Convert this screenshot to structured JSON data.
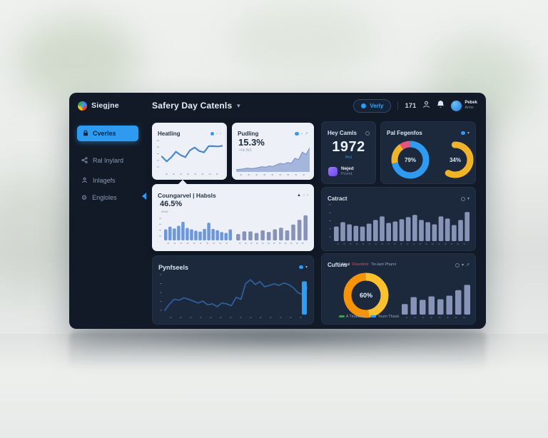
{
  "colors": {
    "accent": "#2e9bf0",
    "panel_bg": "#121a28",
    "card_dark": "#1c293d",
    "card_light": "#edf0f6",
    "bar_gray": "#8794b8",
    "bar_blue": "#6f97d8",
    "donut_blue": "#2e9bf0",
    "donut_yellow": "#f0b429",
    "donut_pink": "#e8537a",
    "donut_orange": "#f59409",
    "legend_green": "#3f9e52"
  },
  "header": {
    "logo_text": "Siegjne",
    "title": "Safery Day Catenls",
    "search_label": "Verly",
    "counter": "171",
    "user_name": "Pebek",
    "user_role": "Amw"
  },
  "sidebar": {
    "items": [
      {
        "label": "Cverles",
        "active": true
      },
      {
        "label": "Ral Inylard",
        "active": false
      },
      {
        "label": "Inlagefs",
        "active": false
      },
      {
        "label": "Engloles",
        "active": false
      }
    ]
  },
  "cards": {
    "heatling": {
      "title": "Heatling"
    },
    "pudling": {
      "title": "Pudling",
      "value": "15.3%",
      "subvalue": "+0k 0k2"
    },
    "hey_camls": {
      "title": "Hey Camls",
      "value": "1972",
      "caption": "Prcl",
      "item_title": "Nejed",
      "item_sub": "Pcvnd"
    },
    "pal_fegenfos": {
      "title": "Pal Fegenfos"
    },
    "coungarvel": {
      "title": "Coungarvel | Habsls",
      "value": "46.5%",
      "subvalue": "www"
    },
    "catract": {
      "title": "Catract"
    },
    "pynfseels": {
      "title": "Pynfseels"
    },
    "cuftins": {
      "title": "Cuftins",
      "caption_a": "Neal",
      "caption_b": "Finemlint",
      "caption_c": "Tin-lant Phaml",
      "legend": [
        {
          "label": "A Tinasfins",
          "color": "#3f9e52"
        },
        {
          "label": "Toum Thask",
          "color": "#2e9bf0"
        }
      ]
    }
  },
  "chart_data": {
    "heatling": {
      "type": "line",
      "title": "Heatling",
      "color": "#4d86c9",
      "stroke": 2.2,
      "max": 80,
      "values": [
        38,
        24,
        36,
        52,
        42,
        36,
        56,
        64,
        54,
        50,
        68,
        68,
        67,
        69
      ],
      "y_ticks": 5,
      "x_ticks": 8,
      "tick_color": "rgba(90,105,130,0.5)"
    },
    "pudling": {
      "type": "area",
      "title": "Pudling",
      "color": "#7e97cc",
      "fill": "#96abd6",
      "stroke": 1.2,
      "max": 100,
      "values": [
        3,
        5,
        7,
        10,
        8,
        9,
        12,
        16,
        14,
        19,
        17,
        24,
        30,
        27,
        34,
        31,
        52,
        46,
        78,
        68,
        95
      ],
      "x_ticks": 9,
      "tick_color": "rgba(90,105,130,0.5)"
    },
    "fegenfos_a": {
      "type": "donut",
      "label": "79%",
      "stroke": 9,
      "segments": [
        {
          "value": 72,
          "color": "#2e9bf0"
        },
        {
          "value": 19,
          "color": "#f0b429"
        },
        {
          "value": 9,
          "color": "#e8537a"
        }
      ]
    },
    "fegenfos_b": {
      "type": "donut",
      "label": "34%",
      "stroke": 9,
      "rounded": true,
      "segments": [
        {
          "value": 58,
          "color": "#f0b429"
        },
        {
          "value": 42,
          "color": "none"
        }
      ]
    },
    "coungarvel_hist": {
      "type": "bar",
      "title": "Coungarvel | Habsls",
      "color": "#6f97d8",
      "max": 100,
      "gap": 1.5,
      "values": [
        50,
        62,
        54,
        66,
        84,
        56,
        50,
        44,
        40,
        52,
        80,
        52,
        46,
        38,
        34,
        50
      ],
      "y_ticks": 4,
      "x_ticks": 10,
      "tick_color": "rgba(90,105,130,0.5)"
    },
    "coungarvel_bars": {
      "type": "bar",
      "color": "#8794b8",
      "max": 100,
      "gap": 3,
      "values": [
        24,
        34,
        34,
        28,
        38,
        32,
        42,
        48,
        38,
        60,
        78,
        95
      ],
      "x_ticks": 12,
      "tick_color": "rgba(90,105,130,0.5)"
    },
    "catract": {
      "type": "bar",
      "title": "Catract",
      "color": "#8794b8",
      "max": 100,
      "gap": 2.5,
      "values": [
        40,
        52,
        46,
        42,
        40,
        48,
        58,
        68,
        50,
        54,
        60,
        66,
        72,
        58,
        52,
        46,
        68,
        62,
        44,
        58,
        80
      ],
      "y_ticks": 5,
      "x_ticks": 21
    },
    "pynfseels": {
      "type": "line",
      "title": "Pynfseels",
      "color": "#2f5e96",
      "stroke": 1.8,
      "max": 80,
      "values": [
        6,
        20,
        30,
        28,
        33,
        30,
        26,
        22,
        26,
        18,
        20,
        14,
        22,
        20,
        16,
        34,
        30,
        64,
        72,
        62,
        68,
        57,
        60,
        63,
        60,
        65,
        62,
        55,
        44,
        40,
        56
      ],
      "y_ticks": 5,
      "x_ticks": 14,
      "highlight_bar": "#2e9ff5"
    },
    "cuftins_donut": {
      "type": "donut",
      "label": "60%",
      "stroke": 11,
      "segments": [
        {
          "value": 48,
          "color": "#fbc02d"
        },
        {
          "value": 52,
          "color": "#f59409"
        }
      ]
    },
    "cuftins_bars": {
      "type": "bar",
      "color": "#8794b8",
      "max": 100,
      "gap": 4,
      "values": [
        30,
        50,
        42,
        52,
        44,
        54,
        70,
        85
      ],
      "x_ticks": 8
    }
  }
}
